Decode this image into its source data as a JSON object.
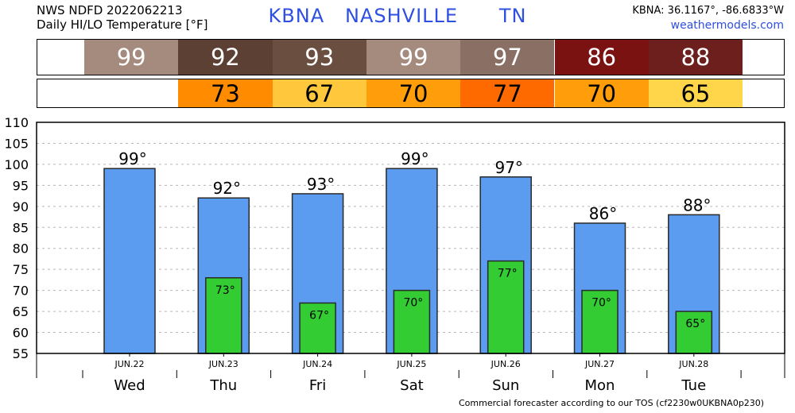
{
  "header": {
    "line1": "NWS NDFD 2022062213",
    "line2": "Daily HI/LO Temperature [°F]",
    "station": "KBNA",
    "city": "NASHVILLE",
    "state": "TN",
    "coords": "KBNA: 36.1167°, -86.6833°W",
    "site": "weathermodels.com"
  },
  "footer": "Commercial forecaster according to our TOS (cf2230w0UKBNA0p230)",
  "hi_strip": [
    {
      "text": "99",
      "color": "#a58a7e"
    },
    {
      "text": "92",
      "color": "#5b4033"
    },
    {
      "text": "93",
      "color": "#6a4e40"
    },
    {
      "text": "99",
      "color": "#a58a7e"
    },
    {
      "text": "97",
      "color": "#8a7064"
    },
    {
      "text": "86",
      "color": "#7a1212"
    },
    {
      "text": "88",
      "color": "#6c1f1d"
    }
  ],
  "lo_strip": [
    {
      "text": "",
      "color": "#ffffff"
    },
    {
      "text": "73",
      "color": "#ff8c00"
    },
    {
      "text": "67",
      "color": "#ffc83c"
    },
    {
      "text": "70",
      "color": "#ff9d0a"
    },
    {
      "text": "77",
      "color": "#ff6a00"
    },
    {
      "text": "70",
      "color": "#ff9d0a"
    },
    {
      "text": "65",
      "color": "#ffd54a"
    }
  ],
  "chart_data": {
    "type": "bar",
    "categories": [
      "Wed",
      "Thu",
      "Fri",
      "Sat",
      "Sun",
      "Mon",
      "Tue"
    ],
    "dates": [
      "JUN.22",
      "JUN.23",
      "JUN.24",
      "JUN.25",
      "JUN.26",
      "JUN.27",
      "JUN.28"
    ],
    "series": [
      {
        "values": [
          99,
          92,
          93,
          99,
          97,
          86,
          88
        ],
        "labels": [
          "99°",
          "92°",
          "93°",
          "99°",
          "97°",
          "86°",
          "88°"
        ],
        "color": "#5b9bf0"
      },
      {
        "values": [
          null,
          73,
          67,
          70,
          77,
          70,
          65
        ],
        "labels": [
          "",
          "73°",
          "67°",
          "70°",
          "77°",
          "70°",
          "65°"
        ],
        "color": "#33cc33"
      }
    ],
    "ylim": [
      55,
      110
    ],
    "yticks": [
      55,
      60,
      65,
      70,
      75,
      80,
      85,
      90,
      95,
      100,
      105,
      110
    ],
    "grid": "horizontal dashed"
  }
}
